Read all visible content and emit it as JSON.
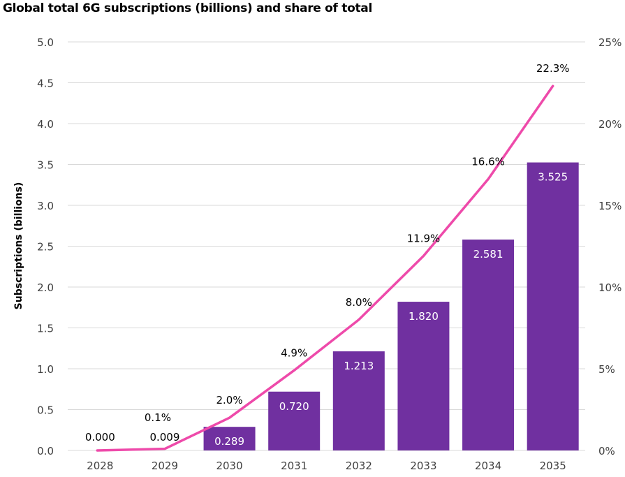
{
  "chart_data": {
    "type": "bar",
    "title": "Global total 6G subscriptions (billions) and share of total",
    "xlabel": "",
    "ylabel": "Subscriptions (billions)",
    "y2label": "",
    "categories": [
      "2028",
      "2029",
      "2030",
      "2031",
      "2032",
      "2033",
      "2034",
      "2035"
    ],
    "series": [
      {
        "name": "Subscriptions (billions)",
        "type": "bar",
        "axis": "left",
        "color": "#7030A0",
        "values": [
          0.0,
          0.009,
          0.289,
          0.72,
          1.213,
          1.82,
          2.581,
          3.525
        ],
        "labels": [
          "0.000",
          "0.009",
          "0.289",
          "0.720",
          "1.213",
          "1.820",
          "2.581",
          "3.525"
        ]
      },
      {
        "name": "Share of total",
        "type": "line",
        "axis": "right",
        "color": "#EE4AAA",
        "values": [
          0.0,
          0.1,
          2.0,
          4.9,
          8.0,
          11.9,
          16.6,
          22.3
        ],
        "labels": [
          null,
          "0.1%",
          "2.0%",
          "4.9%",
          "8.0%",
          "11.9%",
          "16.6%",
          "22.3%"
        ]
      }
    ],
    "ylim": [
      0,
      5
    ],
    "yticks": [
      "0.0",
      "0.5",
      "1.0",
      "1.5",
      "2.0",
      "2.5",
      "3.0",
      "3.5",
      "4.0",
      "4.5",
      "5.0"
    ],
    "y2lim": [
      0,
      25
    ],
    "y2ticks": [
      "0%",
      "5%",
      "10%",
      "15%",
      "20%",
      "25%"
    ],
    "grid": true,
    "legend": "none"
  }
}
